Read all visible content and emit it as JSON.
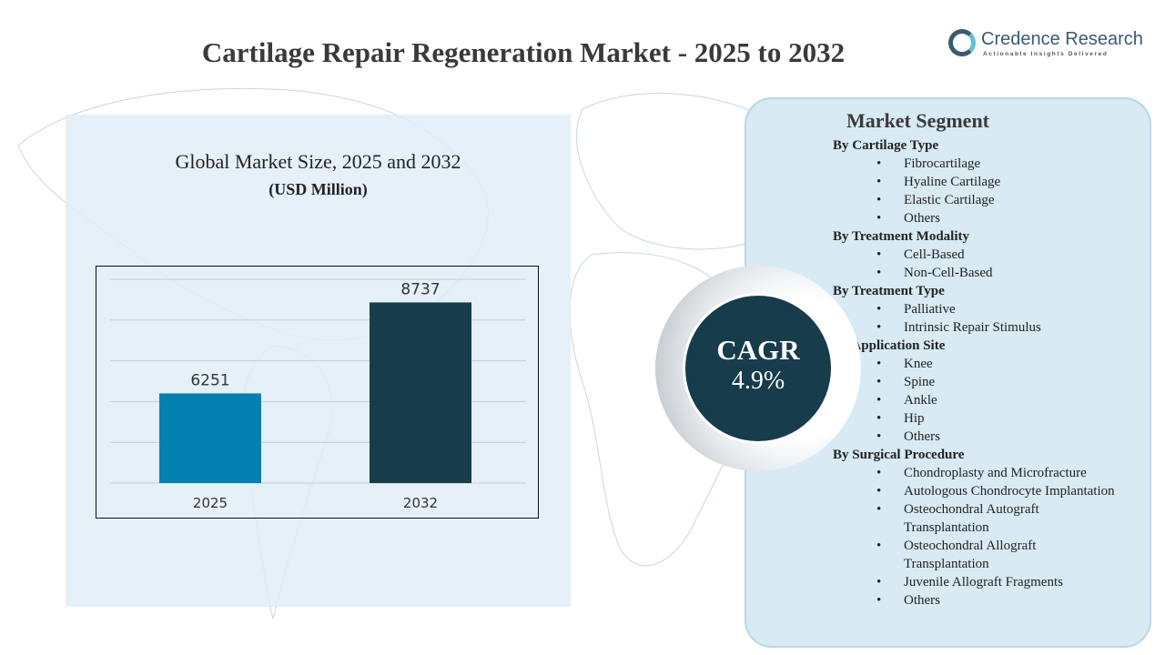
{
  "title": "Cartilage Repair Regeneration Market - 2025 to 2032",
  "logo": {
    "name1": "Credence",
    "name2": "Research",
    "tagline": "Actionable Insights Delivered"
  },
  "chart_data": {
    "type": "bar",
    "title": "Global Market Size, 2025 and 2032",
    "ylabel": "(USD Million)",
    "categories": [
      "2025",
      "2032"
    ],
    "values": [
      6251,
      8737
    ],
    "colors": [
      "#0581b1",
      "#173c4a"
    ],
    "ylim": [
      3800,
      9370
    ],
    "grid": true
  },
  "segment": {
    "title": "Market Segment",
    "groups": [
      {
        "heading": "By Cartilage Type",
        "items": [
          "Fibrocartilage",
          "Hyaline Cartilage",
          "Elastic Cartilage",
          "Others"
        ]
      },
      {
        "heading": "By Treatment Modality",
        "items": [
          "Cell-Based",
          "Non-Cell-Based"
        ]
      },
      {
        "heading": "By Treatment Type",
        "items": [
          "Palliative",
          "Intrinsic Repair Stimulus"
        ]
      },
      {
        "heading": "By Application Site",
        "items": [
          "Knee",
          "Spine",
          "Ankle",
          "Hip",
          "Others"
        ]
      },
      {
        "heading": "By Surgical Procedure",
        "items": [
          "Chondroplasty and Microfracture",
          "Autologous Chondrocyte Implantation",
          "Osteochondral Autograft Transplantation",
          "Osteochondral Allograft Transplantation",
          "Juvenile Allograft Fragments",
          "Others"
        ]
      }
    ]
  },
  "cagr": {
    "label": "CAGR",
    "value": "4.9%"
  },
  "bullet": "•"
}
